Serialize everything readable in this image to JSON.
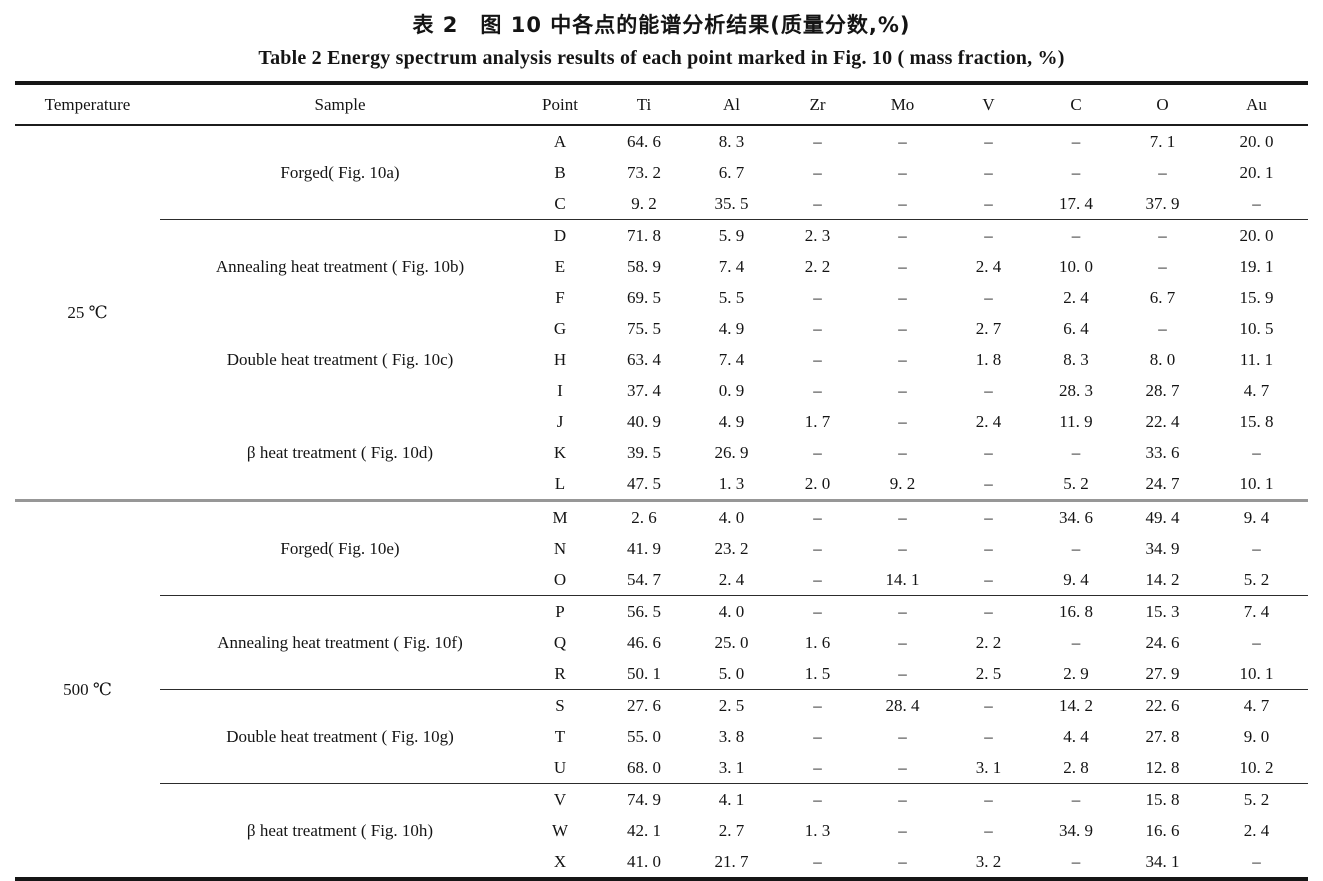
{
  "title_zh": "表 2　图 10 中各点的能谱分析结果(质量分数,%)",
  "title_en": "Table 2  Energy spectrum analysis results of each point marked in Fig. 10 ( mass fraction, %)",
  "chart_data": {
    "type": "table",
    "columns": [
      "Temperature",
      "Sample",
      "Point",
      "Ti",
      "Al",
      "Zr",
      "Mo",
      "V",
      "C",
      "O",
      "Au"
    ],
    "value_columns": [
      "Ti",
      "Al",
      "Zr",
      "Mo",
      "V",
      "C",
      "O",
      "Au"
    ],
    "missing_symbol": "–",
    "sections": [
      {
        "temperature": "25 ℃",
        "groups": [
          {
            "sample": "Forged( Fig. 10a)",
            "rule_after": true,
            "rows": [
              {
                "point": "A",
                "values": [
                  "64. 6",
                  "8. 3",
                  "–",
                  "–",
                  "–",
                  "–",
                  "7. 1",
                  "20. 0"
                ]
              },
              {
                "point": "B",
                "values": [
                  "73. 2",
                  "6. 7",
                  "–",
                  "–",
                  "–",
                  "–",
                  "–",
                  "20. 1"
                ]
              },
              {
                "point": "C",
                "values": [
                  "9. 2",
                  "35. 5",
                  "–",
                  "–",
                  "–",
                  "17. 4",
                  "37. 9",
                  "–"
                ]
              }
            ]
          },
          {
            "sample": "Annealing heat treatment ( Fig. 10b)",
            "rule_after": false,
            "rows": [
              {
                "point": "D",
                "values": [
                  "71. 8",
                  "5. 9",
                  "2. 3",
                  "–",
                  "–",
                  "–",
                  "–",
                  "20. 0"
                ]
              },
              {
                "point": "E",
                "values": [
                  "58. 9",
                  "7. 4",
                  "2. 2",
                  "–",
                  "2. 4",
                  "10. 0",
                  "–",
                  "19. 1"
                ]
              },
              {
                "point": "F",
                "values": [
                  "69. 5",
                  "5. 5",
                  "–",
                  "–",
                  "–",
                  "2. 4",
                  "6. 7",
                  "15. 9"
                ]
              }
            ]
          },
          {
            "sample": "Double heat treatment ( Fig. 10c)",
            "rule_after": false,
            "rows": [
              {
                "point": "G",
                "values": [
                  "75. 5",
                  "4. 9",
                  "–",
                  "–",
                  "2. 7",
                  "6. 4",
                  "–",
                  "10. 5"
                ]
              },
              {
                "point": "H",
                "values": [
                  "63. 4",
                  "7. 4",
                  "–",
                  "–",
                  "1. 8",
                  "8. 3",
                  "8. 0",
                  "11. 1"
                ]
              },
              {
                "point": "I",
                "values": [
                  "37. 4",
                  "0. 9",
                  "–",
                  "–",
                  "–",
                  "28. 3",
                  "28. 7",
                  "4. 7"
                ]
              }
            ]
          },
          {
            "sample": "β heat treatment ( Fig. 10d)",
            "rule_after": false,
            "rows": [
              {
                "point": "J",
                "values": [
                  "40. 9",
                  "4. 9",
                  "1. 7",
                  "–",
                  "2. 4",
                  "11. 9",
                  "22. 4",
                  "15. 8"
                ]
              },
              {
                "point": "K",
                "values": [
                  "39. 5",
                  "26. 9",
                  "–",
                  "–",
                  "–",
                  "–",
                  "33. 6",
                  "–"
                ]
              },
              {
                "point": "L",
                "values": [
                  "47. 5",
                  "1. 3",
                  "2. 0",
                  "9. 2",
                  "–",
                  "5. 2",
                  "24. 7",
                  "10. 1"
                ]
              }
            ]
          }
        ]
      },
      {
        "temperature": "500 ℃",
        "groups": [
          {
            "sample": "Forged( Fig. 10e)",
            "rule_after": true,
            "rows": [
              {
                "point": "M",
                "values": [
                  "2. 6",
                  "4. 0",
                  "–",
                  "–",
                  "–",
                  "34. 6",
                  "49. 4",
                  "9. 4"
                ]
              },
              {
                "point": "N",
                "values": [
                  "41. 9",
                  "23. 2",
                  "–",
                  "–",
                  "–",
                  "–",
                  "34. 9",
                  "–"
                ]
              },
              {
                "point": "O",
                "values": [
                  "54. 7",
                  "2. 4",
                  "–",
                  "14. 1",
                  "–",
                  "9. 4",
                  "14. 2",
                  "5. 2"
                ]
              }
            ]
          },
          {
            "sample": "Annealing heat treatment ( Fig. 10f)",
            "rule_after": true,
            "rows": [
              {
                "point": "P",
                "values": [
                  "56. 5",
                  "4. 0",
                  "–",
                  "–",
                  "–",
                  "16. 8",
                  "15. 3",
                  "7. 4"
                ]
              },
              {
                "point": "Q",
                "values": [
                  "46. 6",
                  "25. 0",
                  "1. 6",
                  "–",
                  "2. 2",
                  "–",
                  "24. 6",
                  "–"
                ]
              },
              {
                "point": "R",
                "values": [
                  "50. 1",
                  "5. 0",
                  "1. 5",
                  "–",
                  "2. 5",
                  "2. 9",
                  "27. 9",
                  "10. 1"
                ]
              }
            ]
          },
          {
            "sample": "Double heat treatment ( Fig. 10g)",
            "rule_after": true,
            "rows": [
              {
                "point": "S",
                "values": [
                  "27. 6",
                  "2. 5",
                  "–",
                  "28. 4",
                  "–",
                  "14. 2",
                  "22. 6",
                  "4. 7"
                ]
              },
              {
                "point": "T",
                "values": [
                  "55. 0",
                  "3. 8",
                  "–",
                  "–",
                  "–",
                  "4. 4",
                  "27. 8",
                  "9. 0"
                ]
              },
              {
                "point": "U",
                "values": [
                  "68. 0",
                  "3. 1",
                  "–",
                  "–",
                  "3. 1",
                  "2. 8",
                  "12. 8",
                  "10. 2"
                ]
              }
            ]
          },
          {
            "sample": "β heat treatment ( Fig. 10h)",
            "rule_after": false,
            "rows": [
              {
                "point": "V",
                "values": [
                  "74. 9",
                  "4. 1",
                  "–",
                  "–",
                  "–",
                  "–",
                  "15. 8",
                  "5. 2"
                ]
              },
              {
                "point": "W",
                "values": [
                  "42. 1",
                  "2. 7",
                  "1. 3",
                  "–",
                  "–",
                  "34. 9",
                  "16. 6",
                  "2. 4"
                ]
              },
              {
                "point": "X",
                "values": [
                  "41. 0",
                  "21. 7",
                  "–",
                  "–",
                  "3. 2",
                  "–",
                  "34. 1",
                  "–"
                ]
              }
            ]
          }
        ]
      }
    ]
  }
}
